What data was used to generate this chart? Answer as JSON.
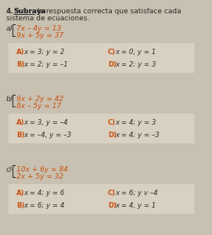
{
  "title_num": "4.",
  "title_bold": "Subraya",
  "title_rest": " la respuesta correcta que satisface cada\nsistema de ecuaciones.",
  "bg_color": "#c8c0b0",
  "answer_bg": "#d8d0c0",
  "orange": "#c85010",
  "dark": "#303030",
  "sections": [
    {
      "label": "a)",
      "eq1": "7x – 4y = 13",
      "eq2": "9x + 5y = 37",
      "answers": [
        [
          "A)",
          "x = 3; y = 2",
          "C)",
          "x = 0, y = 1"
        ],
        [
          "B)",
          "x = 2; y = –1",
          "D)",
          "x = 2; y = 3"
        ]
      ]
    },
    {
      "label": "b)",
      "eq1": "9x + 2y = 42",
      "eq2": "8x – 5y = 17",
      "answers": [
        [
          "A)",
          "x = 3, y = –4",
          "C)",
          "x = 4; y = 3"
        ],
        [
          "B)",
          "x = –4, y = –3",
          "D)",
          "x = 4; y = –3"
        ]
      ]
    },
    {
      "label": "c)",
      "eq1": "10x + 6y = 84",
      "eq2": "2x + 5y = 32",
      "answers": [
        [
          "A)",
          "x = 4; y = 6",
          "C)",
          "x = 6; y v –4"
        ],
        [
          "B)",
          "x = 6; y = 4",
          "D)",
          "x = 4, y = 1"
        ]
      ]
    }
  ]
}
